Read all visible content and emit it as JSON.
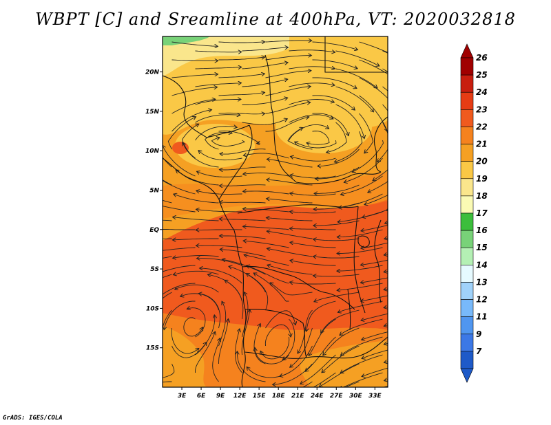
{
  "title": "WBPT [C] and Sreamline at 400hPa, VT: 2020032818",
  "footer": "GrADS: IGES/COLA",
  "map": {
    "lon_range": [
      0,
      35
    ],
    "lat_range": [
      -20,
      24.5
    ],
    "x_ticks": [
      {
        "value": 3,
        "label": "3E"
      },
      {
        "value": 6,
        "label": "6E"
      },
      {
        "value": 9,
        "label": "9E"
      },
      {
        "value": 12,
        "label": "12E"
      },
      {
        "value": 15,
        "label": "15E"
      },
      {
        "value": 18,
        "label": "18E"
      },
      {
        "value": 21,
        "label": "21E"
      },
      {
        "value": 24,
        "label": "24E"
      },
      {
        "value": 27,
        "label": "27E"
      },
      {
        "value": 30,
        "label": "30E"
      },
      {
        "value": 33,
        "label": "33E"
      }
    ],
    "y_ticks": [
      {
        "value": 20,
        "label": "20N"
      },
      {
        "value": 15,
        "label": "15N"
      },
      {
        "value": 10,
        "label": "10N"
      },
      {
        "value": 5,
        "label": "5N"
      },
      {
        "value": 0,
        "label": "EQ"
      },
      {
        "value": -5,
        "label": "5S"
      },
      {
        "value": -10,
        "label": "10S"
      },
      {
        "value": -15,
        "label": "15S"
      }
    ]
  },
  "colorbar": {
    "levels": [
      {
        "label": "26",
        "color": "#a00000"
      },
      {
        "label": "25",
        "color": "#c81e0f"
      },
      {
        "label": "24",
        "color": "#e63c14"
      },
      {
        "label": "23",
        "color": "#f05a1e"
      },
      {
        "label": "22",
        "color": "#f5821e"
      },
      {
        "label": "21",
        "color": "#f5a023"
      },
      {
        "label": "20",
        "color": "#fac846"
      },
      {
        "label": "19",
        "color": "#fae68c"
      },
      {
        "label": "18",
        "color": "#fafab4"
      },
      {
        "label": "17",
        "color": "#3cbe3c"
      },
      {
        "label": "16",
        "color": "#78d278"
      },
      {
        "label": "15",
        "color": "#b4f0b4"
      },
      {
        "label": "14",
        "color": "#e6faff"
      },
      {
        "label": "13",
        "color": "#a0d2fa"
      },
      {
        "label": "12",
        "color": "#78b9fa"
      },
      {
        "label": "11",
        "color": "#5096f0"
      },
      {
        "label": "9",
        "color": "#3c78e6"
      },
      {
        "label": "7",
        "color": "#1e5ac8"
      }
    ],
    "top_arrow_color": "#a00000",
    "bottom_arrow_color": "#1e5ac8"
  }
}
